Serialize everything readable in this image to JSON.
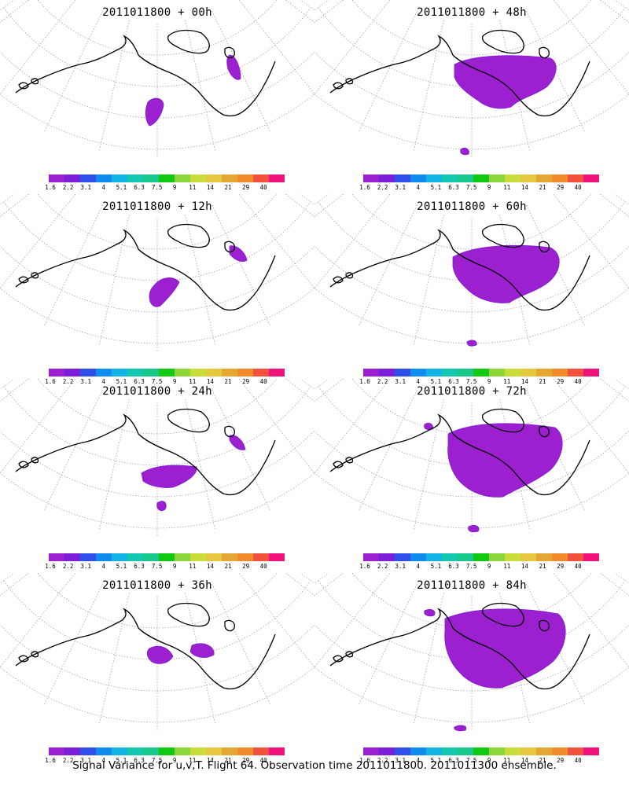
{
  "panels": [
    {
      "title": "2011011800 + 00h"
    },
    {
      "title": "2011011800 + 48h"
    },
    {
      "title": "2011011800 + 12h"
    },
    {
      "title": "2011011800 + 60h"
    },
    {
      "title": "2011011800 + 24h"
    },
    {
      "title": "2011011800 + 72h"
    },
    {
      "title": "2011011800 + 36h"
    },
    {
      "title": "2011011800 + 84h"
    }
  ],
  "colorbar": {
    "colors": [
      "#9c1fd0",
      "#7a1fd8",
      "#2f4fe8",
      "#0f8cf0",
      "#12b4e6",
      "#14c8b0",
      "#18c88a",
      "#12c812",
      "#8cd63a",
      "#c8dc3a",
      "#e6c840",
      "#e6a632",
      "#f08a2a",
      "#f0503c",
      "#f0147a"
    ],
    "labels": [
      "1.6",
      "2.2",
      "3.1",
      "4",
      "5.1",
      "6.3",
      "7.5",
      "9",
      "11",
      "14",
      "21",
      "29",
      "40"
    ]
  },
  "footer": "Signal Variance for u,v,T. Flight 64. Observation time 2011011800. 2011011300 ensemble."
}
